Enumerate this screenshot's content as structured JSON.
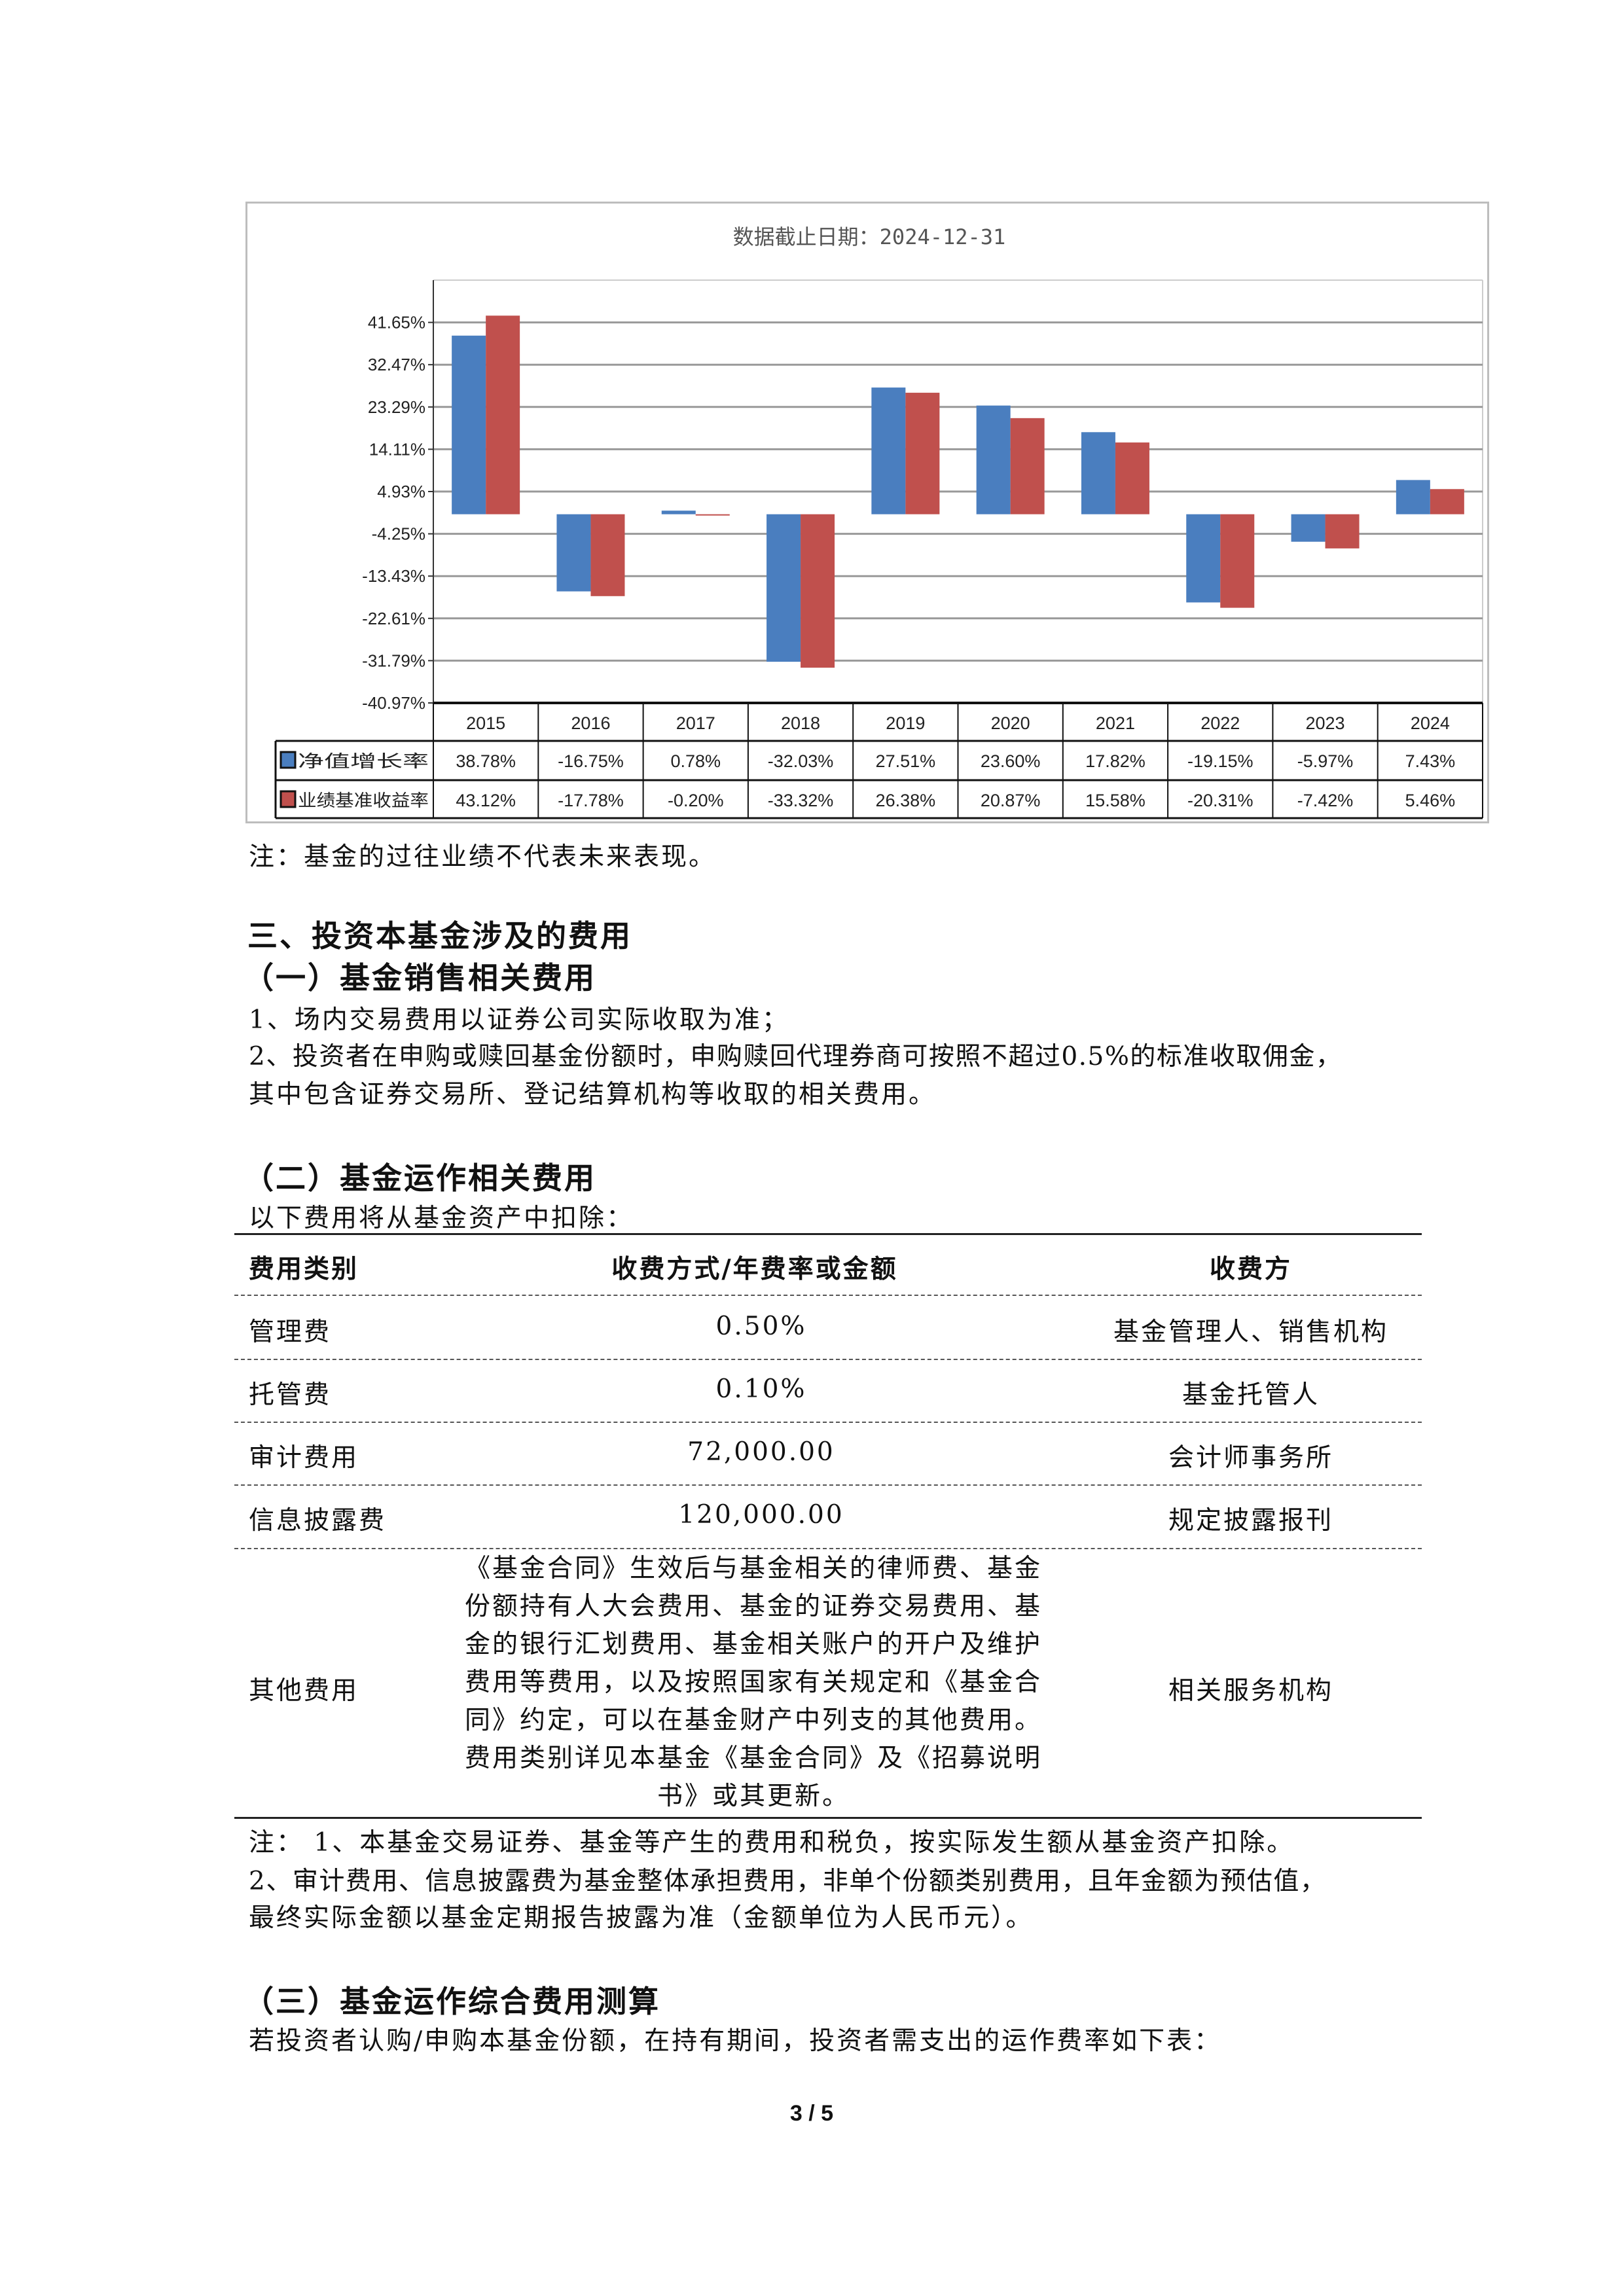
{
  "chart_data": {
    "type": "bar",
    "title": "数据截止日期：2024-12-31",
    "categories": [
      "2015",
      "2016",
      "2017",
      "2018",
      "2019",
      "2020",
      "2021",
      "2022",
      "2023",
      "2024"
    ],
    "series": [
      {
        "name": "净值增长率",
        "color": "#4a7ebf",
        "values": [
          38.78,
          -16.75,
          0.78,
          -32.03,
          27.51,
          23.6,
          17.82,
          -19.15,
          -5.97,
          7.43
        ],
        "labels": [
          "38.78%",
          "-16.75%",
          "0.78%",
          "-32.03%",
          "27.51%",
          "23.60%",
          "17.82%",
          "-19.15%",
          "-5.97%",
          "7.43%"
        ]
      },
      {
        "name": "业绩基准收益率",
        "color": "#c0504d",
        "values": [
          43.12,
          -17.78,
          -0.2,
          -33.32,
          26.38,
          20.87,
          15.58,
          -20.31,
          -7.42,
          5.46
        ],
        "labels": [
          "43.12%",
          "-17.78%",
          "-0.20%",
          "-33.32%",
          "26.38%",
          "20.87%",
          "15.58%",
          "-20.31%",
          "-7.42%",
          "5.46%"
        ]
      }
    ],
    "yticks": [
      41.65,
      32.47,
      23.29,
      14.11,
      4.93,
      -4.25,
      -13.43,
      -22.61,
      -31.79,
      -40.97
    ],
    "ytick_labels": [
      "41.65%",
      "32.47%",
      "23.29%",
      "14.11%",
      "4.93%",
      "-4.25%",
      "-13.43%",
      "-22.61%",
      "-31.79%",
      "-40.97%"
    ],
    "ylim": [
      -40.97,
      50.83
    ],
    "grid": true,
    "legend": "data-table-below"
  },
  "chart_note": "注：基金的过往业绩不代表未来表现。",
  "section3": {
    "title": "三、投资本基金涉及的费用",
    "sub1": {
      "title": "（一）基金销售相关费用",
      "lines": [
        "1、场内交易费用以证券公司实际收取为准；",
        "2、投资者在申购或赎回基金份额时，申购赎回代理券商可按照不超过0.5%的标准收取佣金，",
        "其中包含证券交易所、登记结算机构等收取的相关费用。"
      ]
    },
    "sub2": {
      "title": "（二）基金运作相关费用",
      "intro": "以下费用将从基金资产中扣除：",
      "table": {
        "headers": [
          "费用类别",
          "收费方式/年费率或金额",
          "收费方"
        ],
        "rows": [
          [
            "管理费",
            "0.50%",
            "基金管理人、销售机构"
          ],
          [
            "托管费",
            "0.10%",
            "基金托管人"
          ],
          [
            "审计费用",
            "72,000.00",
            "会计师事务所"
          ],
          [
            "信息披露费",
            "120,000.00",
            "规定披露报刊"
          ],
          [
            "其他费用",
            "《基金合同》生效后与基金相关的律师费、基金份额持有人大会费用、基金的证券交易费用、基金的银行汇划费用、基金相关账户的开户及维护费用等费用，以及按照国家有关规定和《基金合同》约定，可以在基金财产中列支的其他费用。费用类别详见本基金《基金合同》及《招募说明书》或其更新。",
            "相关服务机构"
          ]
        ]
      },
      "notes": [
        "注：  1、本基金交易证券、基金等产生的费用和税负，按实际发生额从基金资产扣除。",
        "2、审计费用、信息披露费为基金整体承担费用，非单个份额类别费用，且年金额为预估值，",
        "最终实际金额以基金定期报告披露为准（金额单位为人民币元）。"
      ]
    },
    "sub3": {
      "title": "（三）基金运作综合费用测算",
      "intro": "若投资者认购/申购本基金份额，在持有期间，投资者需支出的运作费率如下表："
    }
  },
  "page_number": "3 / 5"
}
